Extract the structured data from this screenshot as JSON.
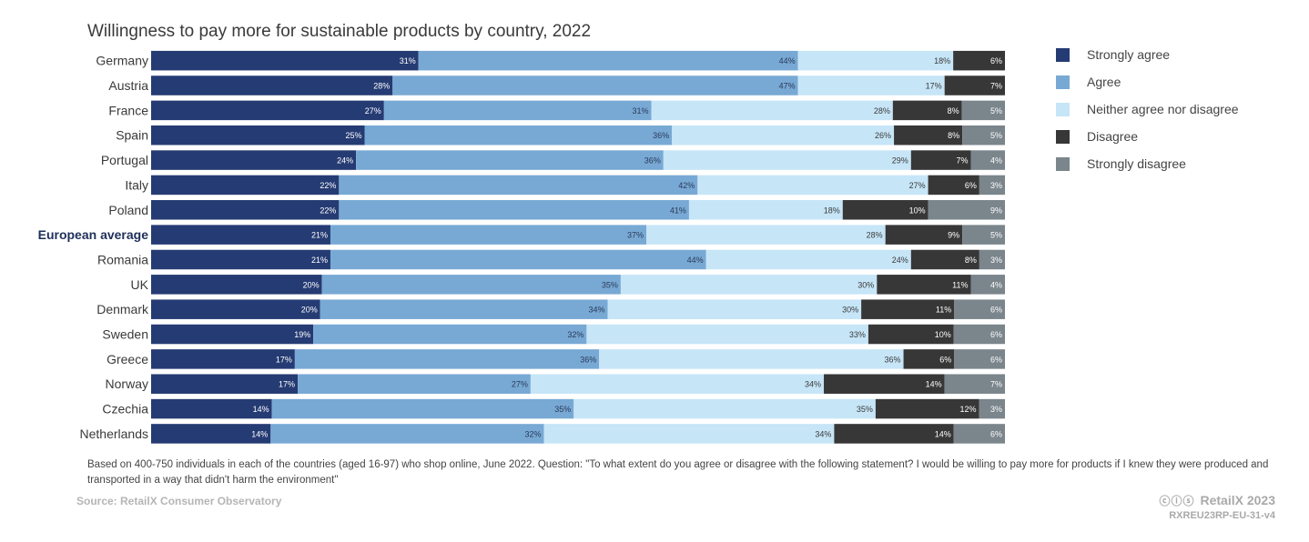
{
  "chart_data": {
    "type": "bar",
    "orientation": "horizontal",
    "stacked": true,
    "percent_stacked": true,
    "title": "Willingness to pay more for sustainable products by country, 2022",
    "categories": [
      "Germany",
      "Austria",
      "France",
      "Spain",
      "Portugal",
      "Italy",
      "Poland",
      "European average",
      "Romania",
      "UK",
      "Denmark",
      "Sweden",
      "Greece",
      "Norway",
      "Czechia",
      "Netherlands"
    ],
    "highlight_category": "European average",
    "series": [
      {
        "name": "Strongly agree",
        "color": "#253b73",
        "label_color": "#ffffff",
        "values": [
          31,
          28,
          27,
          25,
          24,
          22,
          22,
          21,
          21,
          20,
          20,
          19,
          17,
          17,
          14,
          14
        ]
      },
      {
        "name": "Agree",
        "color": "#78a9d4",
        "label_color": "#2a3a5a",
        "values": [
          44,
          47,
          31,
          36,
          36,
          42,
          41,
          37,
          44,
          35,
          34,
          32,
          36,
          27,
          35,
          32
        ]
      },
      {
        "name": "Neither agree nor disagree",
        "color": "#c6e5f7",
        "label_color": "#3a3a3a",
        "values": [
          18,
          17,
          28,
          26,
          29,
          27,
          18,
          28,
          24,
          30,
          30,
          33,
          36,
          34,
          35,
          34
        ]
      },
      {
        "name": "Disagree",
        "color": "#373737",
        "label_color": "#ffffff",
        "values": [
          6,
          7,
          8,
          8,
          7,
          6,
          10,
          9,
          8,
          11,
          11,
          10,
          6,
          14,
          12,
          14
        ]
      },
      {
        "name": "Strongly disagree",
        "color": "#7a858c",
        "label_color": "#ffffff",
        "values": [
          0,
          0,
          5,
          5,
          4,
          3,
          9,
          5,
          3,
          4,
          6,
          6,
          6,
          7,
          3,
          6
        ]
      }
    ],
    "value_suffix": "%",
    "legend_position": "right",
    "grid": false
  },
  "footnote": "Based on 400-750 individuals in each of the countries (aged 16-97) who shop online, June 2022. Question: \"To what extent do you agree or disagree with the following statement? I would be willing to pay more for products if I knew they were produced and transported in a way that didn't harm the environment\"",
  "source": "Source: RetailX Consumer Observatory",
  "brand": {
    "cc": "ⓒⓘⓢ",
    "name": "RetailX 2023"
  },
  "code": "RXREU23RP-EU-31-v4"
}
